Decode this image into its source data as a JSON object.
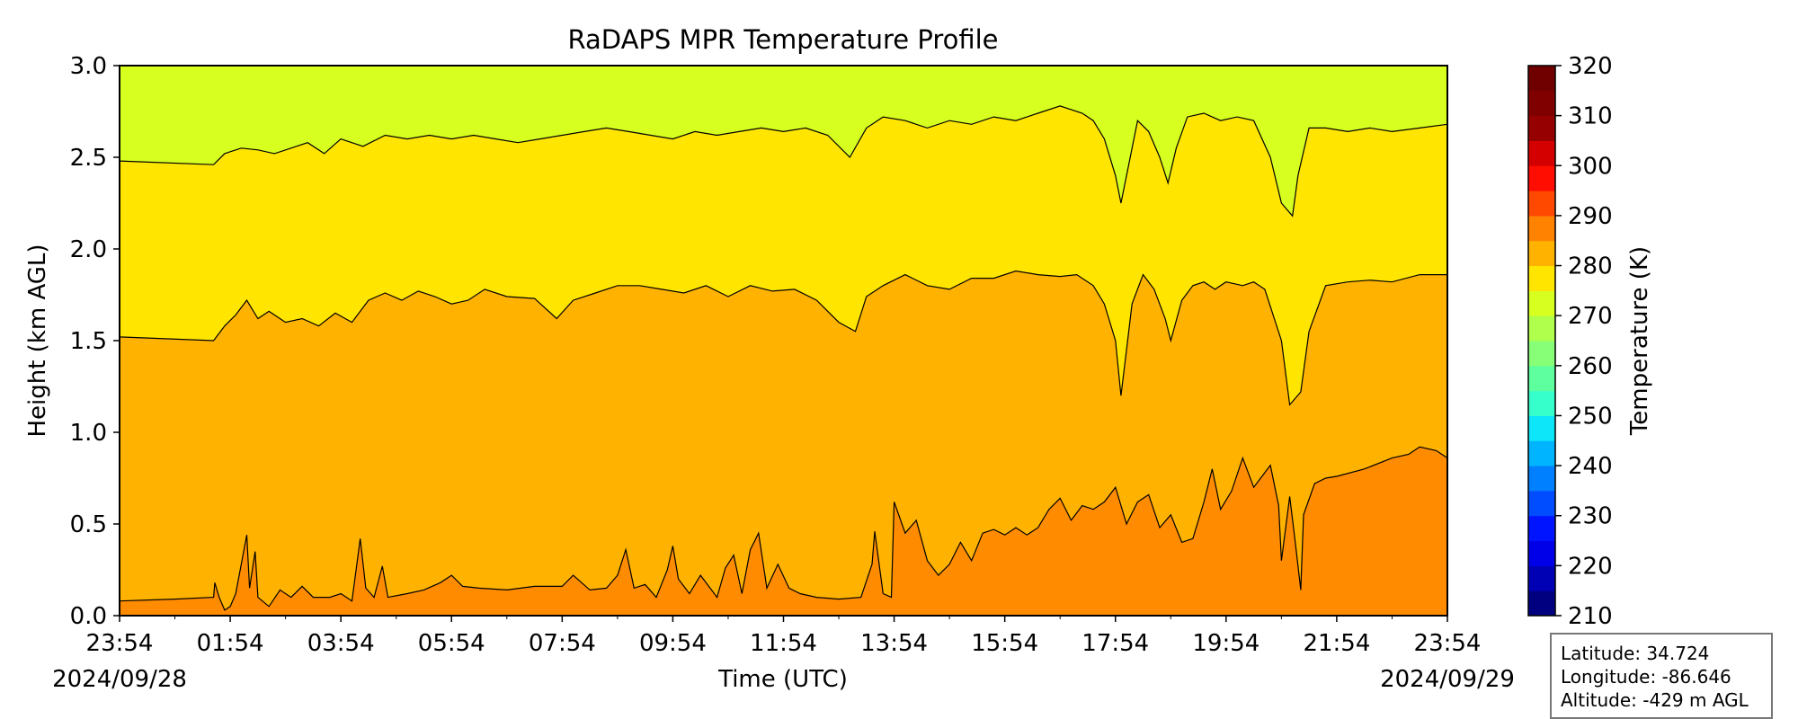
{
  "chart_data": {
    "type": "heatmap",
    "subtype": "filled-contour",
    "title": "RaDAPS MPR Temperature Profile",
    "xlabel": "Time (UTC)",
    "ylabel": "Height (km AGL)",
    "x_ticks": [
      "23:54",
      "01:54",
      "03:54",
      "05:54",
      "07:54",
      "09:54",
      "11:54",
      "13:54",
      "15:54",
      "17:54",
      "19:54",
      "21:54",
      "23:54"
    ],
    "x_tick_hours": [
      0,
      2,
      4,
      6,
      8,
      10,
      12,
      14,
      16,
      18,
      20,
      22,
      24
    ],
    "x_range_hours": [
      0,
      24
    ],
    "start_date": "2024/09/28",
    "end_date": "2024/09/29",
    "ylim": [
      0,
      3
    ],
    "y_ticks": [
      "0.0",
      "0.5",
      "1.0",
      "1.5",
      "2.0",
      "2.5",
      "3.0"
    ],
    "y_tick_values": [
      0,
      0.5,
      1.0,
      1.5,
      2.0,
      2.5,
      3.0
    ],
    "colorbar": {
      "label": "Temperature (K)",
      "min": 210,
      "max": 320,
      "step": 5,
      "tick_labels": [
        "210",
        "220",
        "230",
        "240",
        "250",
        "260",
        "270",
        "280",
        "290",
        "300",
        "310",
        "320"
      ],
      "tick_values": [
        210,
        220,
        230,
        240,
        250,
        260,
        270,
        280,
        290,
        300,
        310,
        320
      ],
      "colors": [
        "#000080",
        "#0000b4",
        "#0000e8",
        "#0014ff",
        "#004cff",
        "#0080ff",
        "#00b4ff",
        "#0de6f8",
        "#36ffcb",
        "#5eff9f",
        "#87ff76",
        "#afff4c",
        "#d7ff20",
        "#ffe500",
        "#ffb300",
        "#ff8200",
        "#ff4800",
        "#ff0d00",
        "#d40000",
        "#960000",
        "#800000",
        "#700000"
      ]
    },
    "bands": [
      {
        "range_k": [
          275,
          280
        ],
        "color": "#d7ff20"
      },
      {
        "range_k": [
          280,
          285
        ],
        "color": "#ffe500"
      },
      {
        "range_k": [
          285,
          290
        ],
        "color": "#ffb300"
      },
      {
        "range_k": [
          290,
          295
        ],
        "color": "#ff8b00"
      }
    ],
    "contours": [
      {
        "level_k": 290,
        "points": [
          [
            0,
            0.08
          ],
          [
            1.0,
            0.09
          ],
          [
            1.7,
            0.1
          ],
          [
            1.72,
            0.18
          ],
          [
            1.8,
            0.1
          ],
          [
            1.9,
            0.03
          ],
          [
            2.0,
            0.05
          ],
          [
            2.1,
            0.12
          ],
          [
            2.3,
            0.44
          ],
          [
            2.35,
            0.15
          ],
          [
            2.45,
            0.35
          ],
          [
            2.5,
            0.1
          ],
          [
            2.7,
            0.05
          ],
          [
            2.9,
            0.14
          ],
          [
            3.1,
            0.1
          ],
          [
            3.3,
            0.16
          ],
          [
            3.5,
            0.1
          ],
          [
            3.8,
            0.1
          ],
          [
            4.0,
            0.12
          ],
          [
            4.2,
            0.08
          ],
          [
            4.35,
            0.42
          ],
          [
            4.45,
            0.15
          ],
          [
            4.6,
            0.1
          ],
          [
            4.75,
            0.27
          ],
          [
            4.85,
            0.1
          ],
          [
            5.2,
            0.12
          ],
          [
            5.5,
            0.14
          ],
          [
            5.8,
            0.18
          ],
          [
            6.0,
            0.22
          ],
          [
            6.2,
            0.16
          ],
          [
            6.5,
            0.15
          ],
          [
            7.0,
            0.14
          ],
          [
            7.5,
            0.16
          ],
          [
            8.0,
            0.16
          ],
          [
            8.2,
            0.22
          ],
          [
            8.5,
            0.14
          ],
          [
            8.8,
            0.15
          ],
          [
            9.0,
            0.22
          ],
          [
            9.15,
            0.36
          ],
          [
            9.3,
            0.15
          ],
          [
            9.5,
            0.17
          ],
          [
            9.7,
            0.1
          ],
          [
            9.9,
            0.25
          ],
          [
            10.0,
            0.38
          ],
          [
            10.1,
            0.2
          ],
          [
            10.3,
            0.12
          ],
          [
            10.5,
            0.22
          ],
          [
            10.8,
            0.1
          ],
          [
            10.95,
            0.26
          ],
          [
            11.1,
            0.33
          ],
          [
            11.25,
            0.12
          ],
          [
            11.4,
            0.36
          ],
          [
            11.55,
            0.45
          ],
          [
            11.7,
            0.15
          ],
          [
            11.9,
            0.28
          ],
          [
            12.1,
            0.15
          ],
          [
            12.3,
            0.12
          ],
          [
            12.6,
            0.1
          ],
          [
            13.0,
            0.09
          ],
          [
            13.4,
            0.1
          ],
          [
            13.6,
            0.28
          ],
          [
            13.65,
            0.46
          ],
          [
            13.8,
            0.12
          ],
          [
            13.95,
            0.1
          ],
          [
            14.0,
            0.62
          ],
          [
            14.2,
            0.45
          ],
          [
            14.4,
            0.52
          ],
          [
            14.6,
            0.3
          ],
          [
            14.8,
            0.22
          ],
          [
            15.0,
            0.28
          ],
          [
            15.2,
            0.4
          ],
          [
            15.4,
            0.3
          ],
          [
            15.6,
            0.45
          ],
          [
            15.8,
            0.47
          ],
          [
            16.0,
            0.44
          ],
          [
            16.2,
            0.48
          ],
          [
            16.4,
            0.44
          ],
          [
            16.6,
            0.48
          ],
          [
            16.8,
            0.58
          ],
          [
            17.0,
            0.64
          ],
          [
            17.2,
            0.52
          ],
          [
            17.4,
            0.6
          ],
          [
            17.6,
            0.58
          ],
          [
            17.8,
            0.62
          ],
          [
            18.0,
            0.7
          ],
          [
            18.2,
            0.5
          ],
          [
            18.4,
            0.62
          ],
          [
            18.6,
            0.66
          ],
          [
            18.8,
            0.48
          ],
          [
            19.0,
            0.55
          ],
          [
            19.2,
            0.4
          ],
          [
            19.4,
            0.42
          ],
          [
            19.6,
            0.62
          ],
          [
            19.75,
            0.8
          ],
          [
            19.9,
            0.58
          ],
          [
            20.1,
            0.68
          ],
          [
            20.3,
            0.86
          ],
          [
            20.5,
            0.7
          ],
          [
            20.7,
            0.78
          ],
          [
            20.8,
            0.82
          ],
          [
            20.95,
            0.6
          ],
          [
            21.0,
            0.3
          ],
          [
            21.15,
            0.65
          ],
          [
            21.25,
            0.4
          ],
          [
            21.35,
            0.14
          ],
          [
            21.4,
            0.55
          ],
          [
            21.6,
            0.72
          ],
          [
            21.8,
            0.75
          ],
          [
            22.0,
            0.76
          ],
          [
            22.5,
            0.8
          ],
          [
            23.0,
            0.86
          ],
          [
            23.3,
            0.88
          ],
          [
            23.5,
            0.92
          ],
          [
            23.8,
            0.9
          ],
          [
            24,
            0.86
          ]
        ]
      },
      {
        "level_k": 285,
        "points": [
          [
            0,
            1.52
          ],
          [
            1.7,
            1.5
          ],
          [
            1.9,
            1.58
          ],
          [
            2.1,
            1.64
          ],
          [
            2.3,
            1.72
          ],
          [
            2.5,
            1.62
          ],
          [
            2.7,
            1.66
          ],
          [
            3.0,
            1.6
          ],
          [
            3.3,
            1.62
          ],
          [
            3.6,
            1.58
          ],
          [
            3.9,
            1.65
          ],
          [
            4.2,
            1.6
          ],
          [
            4.5,
            1.72
          ],
          [
            4.8,
            1.76
          ],
          [
            5.1,
            1.72
          ],
          [
            5.4,
            1.77
          ],
          [
            5.7,
            1.74
          ],
          [
            6.0,
            1.7
          ],
          [
            6.3,
            1.72
          ],
          [
            6.6,
            1.78
          ],
          [
            7.0,
            1.74
          ],
          [
            7.5,
            1.73
          ],
          [
            7.9,
            1.62
          ],
          [
            8.2,
            1.72
          ],
          [
            8.6,
            1.76
          ],
          [
            9.0,
            1.8
          ],
          [
            9.4,
            1.8
          ],
          [
            9.8,
            1.78
          ],
          [
            10.2,
            1.76
          ],
          [
            10.6,
            1.8
          ],
          [
            11.0,
            1.74
          ],
          [
            11.4,
            1.8
          ],
          [
            11.8,
            1.77
          ],
          [
            12.2,
            1.78
          ],
          [
            12.6,
            1.72
          ],
          [
            13.0,
            1.6
          ],
          [
            13.3,
            1.55
          ],
          [
            13.5,
            1.74
          ],
          [
            13.8,
            1.8
          ],
          [
            14.2,
            1.86
          ],
          [
            14.6,
            1.8
          ],
          [
            15.0,
            1.78
          ],
          [
            15.4,
            1.84
          ],
          [
            15.8,
            1.84
          ],
          [
            16.2,
            1.88
          ],
          [
            16.6,
            1.86
          ],
          [
            17.0,
            1.85
          ],
          [
            17.3,
            1.86
          ],
          [
            17.6,
            1.8
          ],
          [
            17.8,
            1.7
          ],
          [
            18.0,
            1.5
          ],
          [
            18.1,
            1.2
          ],
          [
            18.2,
            1.45
          ],
          [
            18.3,
            1.7
          ],
          [
            18.5,
            1.86
          ],
          [
            18.7,
            1.78
          ],
          [
            18.9,
            1.62
          ],
          [
            19.0,
            1.5
          ],
          [
            19.2,
            1.72
          ],
          [
            19.4,
            1.8
          ],
          [
            19.6,
            1.82
          ],
          [
            19.8,
            1.78
          ],
          [
            20.0,
            1.82
          ],
          [
            20.3,
            1.8
          ],
          [
            20.5,
            1.82
          ],
          [
            20.7,
            1.78
          ],
          [
            21.0,
            1.5
          ],
          [
            21.15,
            1.15
          ],
          [
            21.35,
            1.22
          ],
          [
            21.5,
            1.55
          ],
          [
            21.8,
            1.8
          ],
          [
            22.2,
            1.82
          ],
          [
            22.6,
            1.83
          ],
          [
            23.0,
            1.82
          ],
          [
            23.5,
            1.86
          ],
          [
            24,
            1.86
          ]
        ]
      },
      {
        "level_k": 280,
        "points": [
          [
            0,
            2.48
          ],
          [
            1.7,
            2.46
          ],
          [
            1.9,
            2.52
          ],
          [
            2.2,
            2.55
          ],
          [
            2.5,
            2.54
          ],
          [
            2.8,
            2.52
          ],
          [
            3.1,
            2.55
          ],
          [
            3.4,
            2.58
          ],
          [
            3.7,
            2.52
          ],
          [
            4.0,
            2.6
          ],
          [
            4.4,
            2.56
          ],
          [
            4.8,
            2.62
          ],
          [
            5.2,
            2.6
          ],
          [
            5.6,
            2.62
          ],
          [
            6.0,
            2.6
          ],
          [
            6.4,
            2.62
          ],
          [
            6.8,
            2.6
          ],
          [
            7.2,
            2.58
          ],
          [
            7.6,
            2.6
          ],
          [
            8.0,
            2.62
          ],
          [
            8.4,
            2.64
          ],
          [
            8.8,
            2.66
          ],
          [
            9.2,
            2.64
          ],
          [
            9.6,
            2.62
          ],
          [
            10.0,
            2.6
          ],
          [
            10.4,
            2.64
          ],
          [
            10.8,
            2.62
          ],
          [
            11.2,
            2.64
          ],
          [
            11.6,
            2.66
          ],
          [
            12.0,
            2.64
          ],
          [
            12.4,
            2.66
          ],
          [
            12.8,
            2.62
          ],
          [
            13.2,
            2.5
          ],
          [
            13.5,
            2.66
          ],
          [
            13.8,
            2.72
          ],
          [
            14.2,
            2.7
          ],
          [
            14.6,
            2.66
          ],
          [
            15.0,
            2.7
          ],
          [
            15.4,
            2.68
          ],
          [
            15.8,
            2.72
          ],
          [
            16.2,
            2.7
          ],
          [
            16.6,
            2.74
          ],
          [
            17.0,
            2.78
          ],
          [
            17.4,
            2.74
          ],
          [
            17.6,
            2.7
          ],
          [
            17.8,
            2.6
          ],
          [
            18.0,
            2.4
          ],
          [
            18.1,
            2.25
          ],
          [
            18.2,
            2.4
          ],
          [
            18.4,
            2.7
          ],
          [
            18.6,
            2.64
          ],
          [
            18.8,
            2.5
          ],
          [
            18.95,
            2.36
          ],
          [
            19.1,
            2.55
          ],
          [
            19.3,
            2.72
          ],
          [
            19.6,
            2.74
          ],
          [
            19.9,
            2.7
          ],
          [
            20.2,
            2.72
          ],
          [
            20.5,
            2.7
          ],
          [
            20.8,
            2.5
          ],
          [
            21.0,
            2.25
          ],
          [
            21.2,
            2.18
          ],
          [
            21.3,
            2.4
          ],
          [
            21.5,
            2.66
          ],
          [
            21.8,
            2.66
          ],
          [
            22.2,
            2.64
          ],
          [
            22.6,
            2.66
          ],
          [
            23.0,
            2.64
          ],
          [
            23.5,
            2.66
          ],
          [
            24,
            2.68
          ]
        ]
      }
    ],
    "annotation": {
      "latitude": "Latitude: 34.724",
      "longitude": "Longitude: -86.646",
      "altitude": "Altitude: -429 m AGL"
    }
  }
}
